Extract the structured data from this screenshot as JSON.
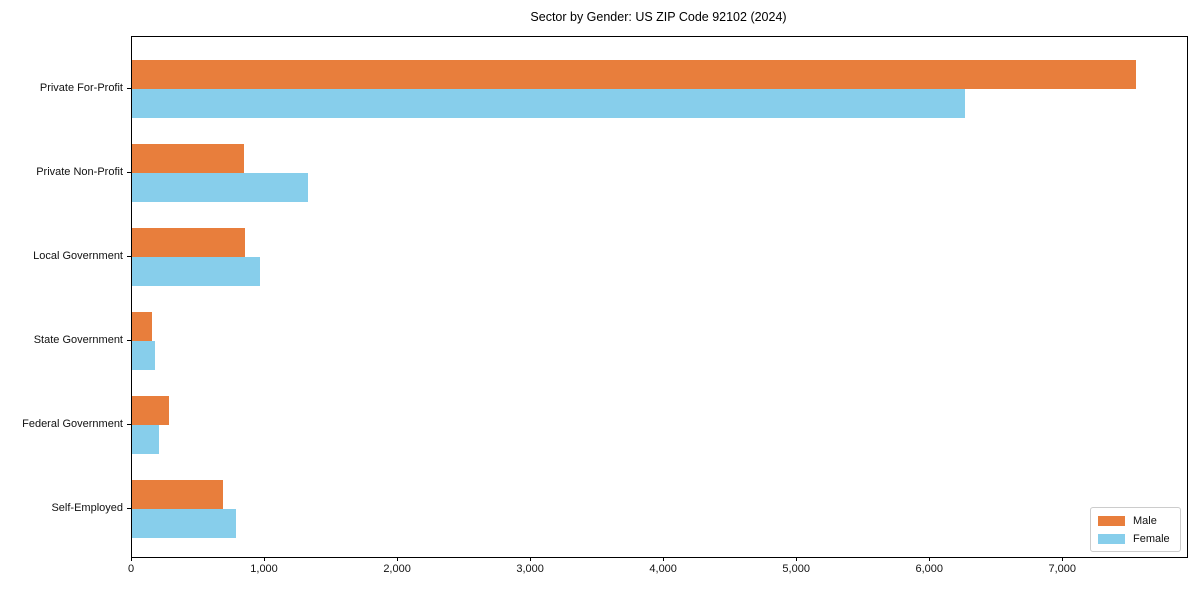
{
  "chart_data": {
    "type": "bar",
    "orientation": "horizontal",
    "title": "Sector by Gender: US ZIP Code 92102 (2024)",
    "categories": [
      "Private For-Profit",
      "Private Non-Profit",
      "Local Government",
      "State Government",
      "Federal Government",
      "Self-Employed"
    ],
    "series": [
      {
        "name": "Male",
        "color": "#e87e3c",
        "values": [
          7550,
          840,
          850,
          150,
          280,
          680
        ]
      },
      {
        "name": "Female",
        "color": "#87ceeb",
        "values": [
          6260,
          1320,
          960,
          170,
          200,
          780
        ]
      }
    ],
    "xlabel": "",
    "ylabel": "",
    "xlim": [
      0,
      7930
    ],
    "xticks": {
      "values": [
        0,
        1000,
        2000,
        3000,
        4000,
        5000,
        6000,
        7000
      ],
      "labels": [
        "0",
        "1,000",
        "2,000",
        "3,000",
        "4,000",
        "5,000",
        "6,000",
        "7,000"
      ]
    },
    "grid": false,
    "legend": {
      "position": "lower right",
      "labels": [
        "Male",
        "Female"
      ]
    },
    "spine_color": "#000000",
    "background": "#ffffff"
  }
}
